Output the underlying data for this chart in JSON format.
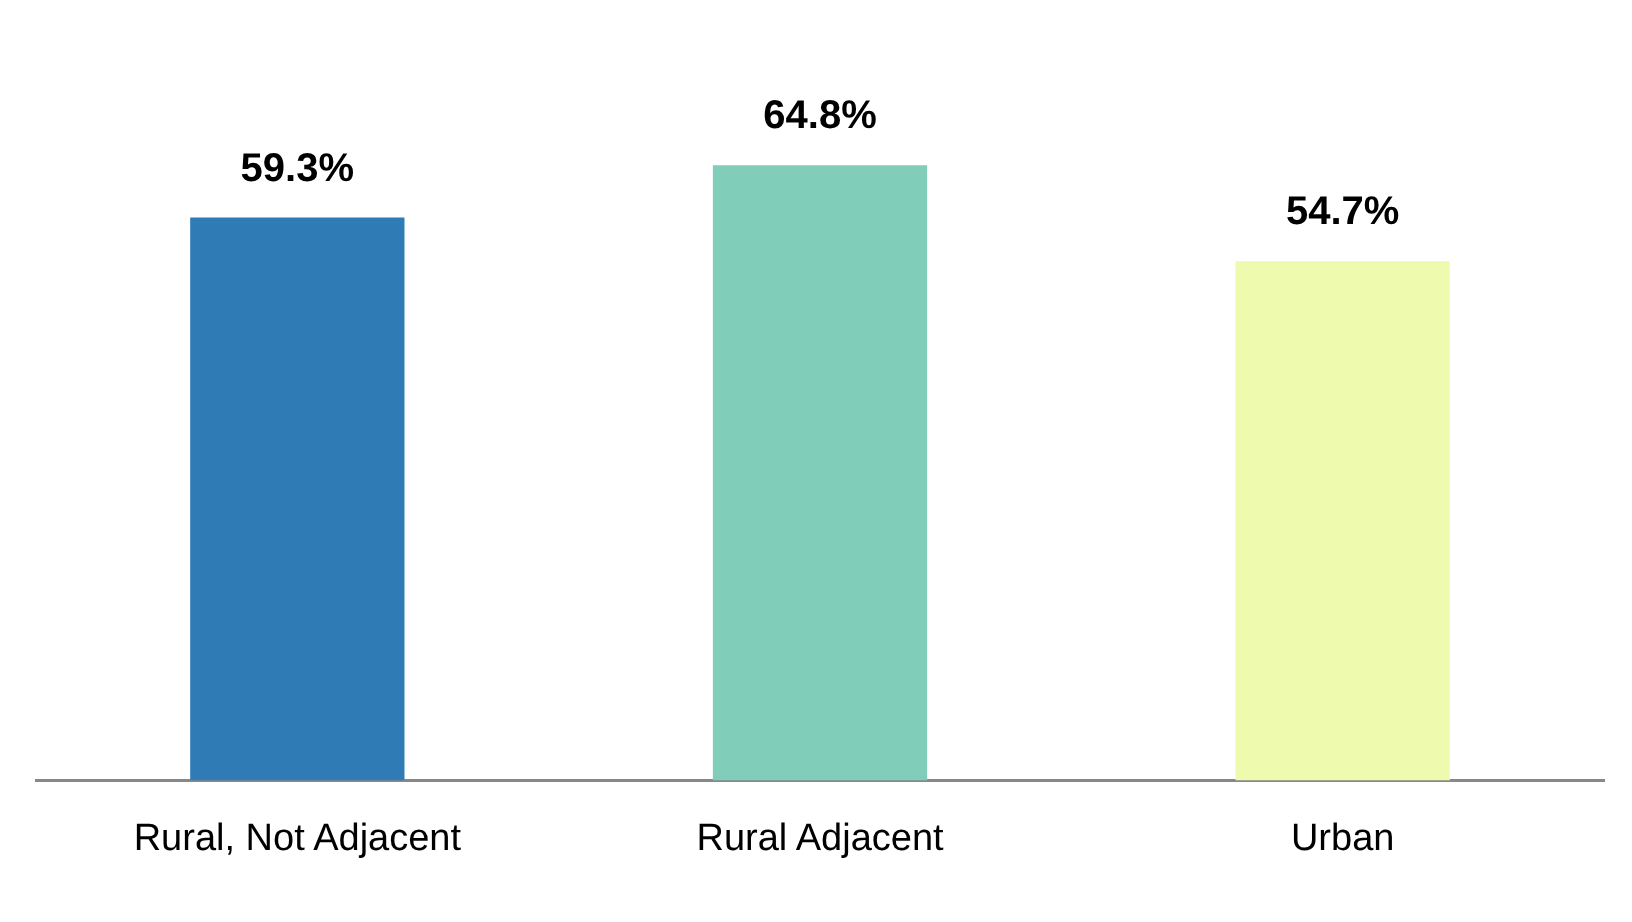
{
  "chart_data": {
    "type": "bar",
    "categories": [
      "Rural, Not Adjacent",
      "Rural Adjacent",
      "Urban"
    ],
    "values": [
      59.3,
      64.8,
      54.7
    ],
    "value_labels": [
      "59.3%",
      "64.8%",
      "54.7%"
    ],
    "colors": [
      "#2e7bb6",
      "#80cdb9",
      "#eefaad"
    ],
    "tick_labels": "x",
    "grid": false
  }
}
